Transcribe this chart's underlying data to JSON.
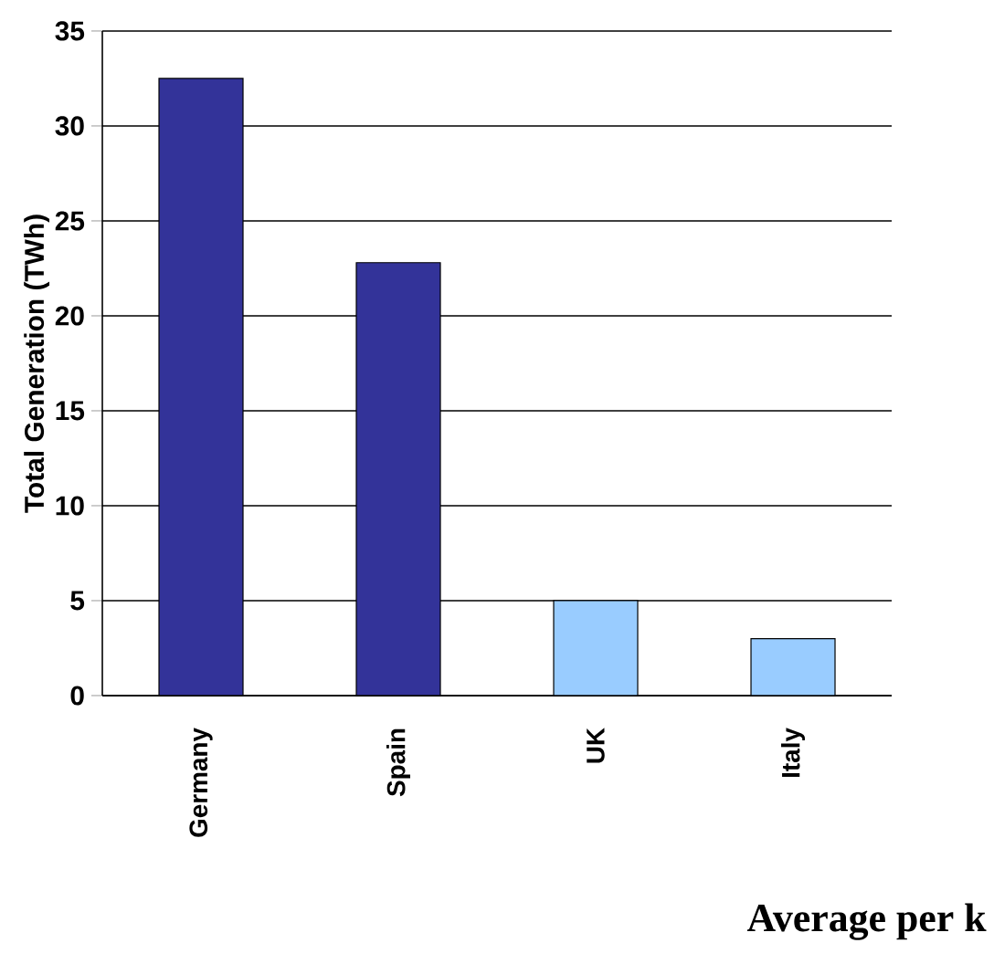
{
  "chart_data": {
    "type": "bar",
    "ylabel": "Total Generation (TWh)",
    "categories": [
      "Germany",
      "Spain",
      "UK",
      "Italy"
    ],
    "values": [
      32.5,
      22.8,
      5.0,
      3.0
    ],
    "colors": [
      "#333399",
      "#333399",
      "#99ccff",
      "#99ccff"
    ],
    "ylim": [
      0,
      35
    ],
    "yticks": [
      0,
      5,
      10,
      15,
      20,
      25,
      30,
      35
    ],
    "grid": "y",
    "annotations": [
      "Average per k"
    ]
  }
}
